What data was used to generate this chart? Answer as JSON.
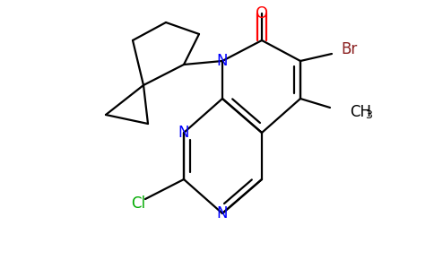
{
  "bg_color": "#ffffff",
  "atom_colors": {
    "N": "#0000ff",
    "O": "#ff0000",
    "Br": "#8b2020",
    "Cl": "#00aa00"
  },
  "bond_color": "#000000",
  "bond_width": 1.6,
  "dbo": 0.055,
  "figsize": [
    4.84,
    3.0
  ],
  "dpi": 100
}
